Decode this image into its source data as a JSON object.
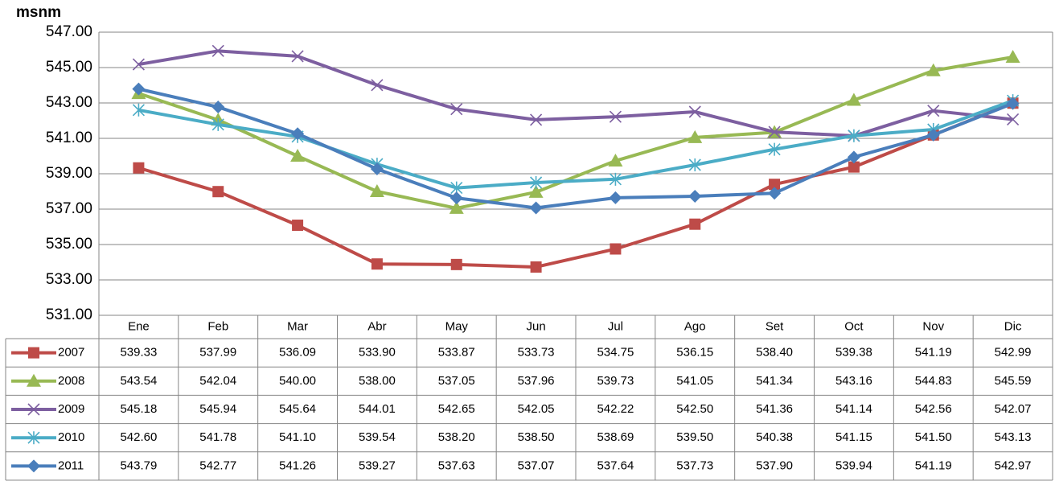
{
  "chart_data": {
    "type": "line",
    "y_label": "msnm",
    "categories": [
      "Ene",
      "Feb",
      "Mar",
      "Abr",
      "May",
      "Jun",
      "Jul",
      "Ago",
      "Set",
      "Oct",
      "Nov",
      "Dic"
    ],
    "ylim": [
      531,
      547
    ],
    "yticks": [
      {
        "value": 531,
        "label": "531.00"
      },
      {
        "value": 533,
        "label": "533.00"
      },
      {
        "value": 535,
        "label": "535.00"
      },
      {
        "value": 537,
        "label": "537.00"
      },
      {
        "value": 539,
        "label": "539.00"
      },
      {
        "value": 541,
        "label": "541.00"
      },
      {
        "value": 543,
        "label": "543.00"
      },
      {
        "value": 545,
        "label": "545.00"
      },
      {
        "value": 547,
        "label": "547.00"
      }
    ],
    "grid": true,
    "series": [
      {
        "name": "2007",
        "color": "#be4b48",
        "marker": "square",
        "values": [
          539.33,
          537.99,
          536.09,
          533.9,
          533.87,
          533.73,
          534.75,
          536.15,
          538.4,
          539.38,
          541.19,
          542.99
        ],
        "value_labels": [
          "539.33",
          "537.99",
          "536.09",
          "533.90",
          "533.87",
          "533.73",
          "534.75",
          "536.15",
          "538.40",
          "539.38",
          "541.19",
          "542.99"
        ]
      },
      {
        "name": "2008",
        "color": "#98b954",
        "marker": "triangle",
        "values": [
          543.54,
          542.04,
          540,
          538,
          537.05,
          537.96,
          539.73,
          541.05,
          541.34,
          543.16,
          544.83,
          545.59
        ],
        "value_labels": [
          "543.54",
          "542.04",
          "540.00",
          "538.00",
          "537.05",
          "537.96",
          "539.73",
          "541.05",
          "541.34",
          "543.16",
          "544.83",
          "545.59"
        ]
      },
      {
        "name": "2009",
        "color": "#7d5fa0",
        "marker": "x",
        "values": [
          545.18,
          545.94,
          545.64,
          544.01,
          542.65,
          542.05,
          542.22,
          542.5,
          541.36,
          541.14,
          542.56,
          542.07
        ],
        "value_labels": [
          "545.18",
          "545.94",
          "545.64",
          "544.01",
          "542.65",
          "542.05",
          "542.22",
          "542.50",
          "541.36",
          "541.14",
          "542.56",
          "542.07"
        ]
      },
      {
        "name": "2010",
        "color": "#4bacc6",
        "marker": "star",
        "values": [
          542.6,
          541.78,
          541.1,
          539.54,
          538.2,
          538.5,
          538.69,
          539.5,
          540.38,
          541.15,
          541.5,
          543.13
        ],
        "value_labels": [
          "542.60",
          "541.78",
          "541.10",
          "539.54",
          "538.20",
          "538.50",
          "538.69",
          "539.50",
          "540.38",
          "541.15",
          "541.50",
          "543.13"
        ]
      },
      {
        "name": "2011",
        "color": "#4a7ebb",
        "marker": "diamond",
        "values": [
          543.79,
          542.77,
          541.26,
          539.27,
          537.63,
          537.07,
          537.64,
          537.73,
          537.9,
          539.94,
          541.19,
          542.97
        ],
        "value_labels": [
          "543.79",
          "542.77",
          "541.26",
          "539.27",
          "537.63",
          "537.07",
          "537.64",
          "537.73",
          "537.90",
          "539.94",
          "541.19",
          "542.97"
        ]
      }
    ]
  }
}
